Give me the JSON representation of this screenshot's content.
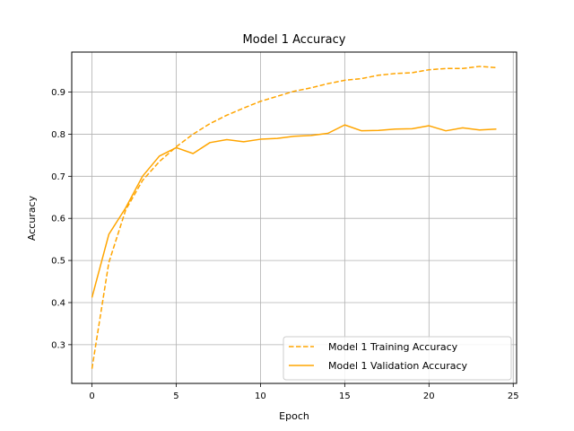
{
  "chart_data": {
    "type": "line",
    "title": "Model 1 Accuracy",
    "xlabel": "Epoch",
    "ylabel": "Accuracy",
    "xlim": [
      -1.2,
      25.2
    ],
    "ylim": [
      0.208,
      0.995
    ],
    "xticks": [
      0,
      5,
      10,
      15,
      20,
      25
    ],
    "yticks": [
      0.3,
      0.4,
      0.5,
      0.6,
      0.7,
      0.8,
      0.9
    ],
    "ytick_labels": [
      "0.3",
      "0.4",
      "0.5",
      "0.6",
      "0.7",
      "0.8",
      "0.9"
    ],
    "grid": true,
    "legend_position": "lower-right",
    "x": [
      0,
      1,
      2,
      3,
      4,
      5,
      6,
      7,
      8,
      9,
      10,
      11,
      12,
      13,
      14,
      15,
      16,
      17,
      18,
      19,
      20,
      21,
      22,
      24,
      23
    ],
    "series": [
      {
        "name": "Model 1 Training Accuracy",
        "style": "dashed",
        "color": "#ffa500",
        "values": [
          0.243,
          0.495,
          0.62,
          0.69,
          0.735,
          0.77,
          0.8,
          0.825,
          0.845,
          0.862,
          0.878,
          0.89,
          0.902,
          0.91,
          0.92,
          0.928,
          0.932,
          0.94,
          0.944,
          0.946,
          0.953,
          0.956,
          0.956,
          0.961,
          0.958
        ]
      },
      {
        "name": "Model 1 Validation Accuracy",
        "style": "solid",
        "color": "#ffa500",
        "values": [
          0.412,
          0.562,
          0.625,
          0.7,
          0.748,
          0.768,
          0.754,
          0.78,
          0.787,
          0.782,
          0.788,
          0.79,
          0.795,
          0.797,
          0.802,
          0.822,
          0.808,
          0.809,
          0.812,
          0.813,
          0.82,
          0.808,
          0.815,
          0.81,
          0.812
        ]
      }
    ]
  }
}
